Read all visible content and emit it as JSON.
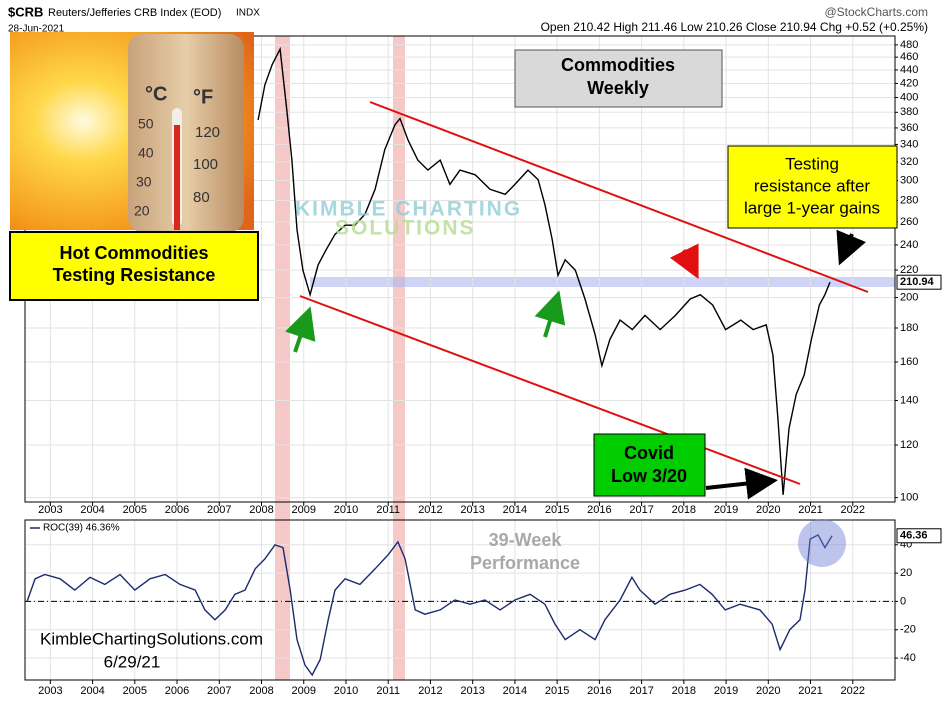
{
  "header": {
    "symbol": "$CRB",
    "name": "Reuters/Jefferies CRB Index (EOD)",
    "exchange": "INDX",
    "date": "28-Jun-2021",
    "source": "@StockCharts.com",
    "quote": "Open 210.42 High 211.46 Low 210.26 Close 210.94 Chg +0.52 (+0.25%)"
  },
  "image_labels": {
    "celsius": "°C",
    "fahrenheit": "°F",
    "c_ticks": [
      "50",
      "40",
      "30",
      "20"
    ],
    "f_ticks": [
      "120",
      "100",
      "80"
    ]
  },
  "annotations": {
    "title_box": [
      "Hot Commodities",
      "Testing Resistance"
    ],
    "period_box": [
      "Commodities",
      "Weekly"
    ],
    "resistance_box": [
      "Testing",
      "resistance after",
      "large 1-year gains"
    ],
    "covid_box": [
      "Covid",
      "Low 3/20"
    ],
    "watermark": [
      "KIMBLE CHARTING",
      "SOLUTIONS"
    ],
    "roc_note": [
      "39-Week",
      "Performance"
    ],
    "site": "KimbleChartingSolutions.com",
    "date": "6/29/21"
  },
  "chart_data": [
    {
      "type": "line",
      "log_scale": true,
      "grid": true,
      "color": "#000000",
      "x": [
        2007.92,
        2008.08,
        2008.25,
        2008.44,
        2008.6,
        2008.72,
        2008.84,
        2008.98,
        2009.15,
        2009.34,
        2009.53,
        2009.74,
        2009.98,
        2010.21,
        2010.45,
        2010.69,
        2010.92,
        2011.16,
        2011.28,
        2011.47,
        2011.7,
        2011.94,
        2012.23,
        2012.46,
        2012.7,
        2013.06,
        2013.41,
        2013.77,
        2014.0,
        2014.31,
        2014.55,
        2014.71,
        2014.88,
        2015.02,
        2015.19,
        2015.43,
        2015.66,
        2015.9,
        2016.06,
        2016.25,
        2016.49,
        2016.78,
        2017.08,
        2017.44,
        2017.8,
        2018.15,
        2018.39,
        2018.68,
        2018.99,
        2019.35,
        2019.64,
        2019.95,
        2020.11,
        2020.23,
        2020.35,
        2020.49,
        2020.66,
        2020.85,
        2021.02,
        2021.21,
        2021.34,
        2021.46
      ],
      "values": [
        370,
        418,
        448,
        473,
        383,
        322,
        253,
        220,
        202,
        224,
        236,
        249,
        257,
        257,
        267,
        291,
        334,
        364,
        372,
        345,
        322,
        311,
        322,
        296,
        311,
        306,
        291,
        286,
        296,
        311,
        301,
        276,
        245,
        216,
        228,
        220,
        199,
        176,
        158,
        173,
        185,
        179,
        188,
        179,
        188,
        199,
        202,
        195,
        179,
        185,
        179,
        182,
        164,
        131,
        101,
        127,
        143,
        153,
        173,
        195,
        202,
        210.94
      ],
      "last_value": 210.94,
      "xlim": [
        2002.4,
        2023.0
      ],
      "xticks": [
        2003,
        2004,
        2005,
        2006,
        2007,
        2008,
        2009,
        2010,
        2011,
        2012,
        2013,
        2014,
        2015,
        2016,
        2017,
        2018,
        2019,
        2020,
        2021,
        2022
      ],
      "ylim": [
        98.5,
        495
      ],
      "yticks": [
        100,
        120,
        140,
        160,
        180,
        200,
        220,
        240,
        260,
        280,
        300,
        320,
        340,
        360,
        380,
        400,
        420,
        440,
        460,
        480
      ]
    },
    {
      "type": "line",
      "grid": true,
      "reference_line": 0,
      "x": [
        2002.45,
        2002.64,
        2002.87,
        2003.23,
        2003.58,
        2003.94,
        2004.29,
        2004.65,
        2005.0,
        2005.36,
        2005.72,
        2006.07,
        2006.43,
        2006.66,
        2006.9,
        2007.14,
        2007.37,
        2007.61,
        2007.85,
        2008.08,
        2008.32,
        2008.51,
        2008.68,
        2008.84,
        2009.03,
        2009.2,
        2009.39,
        2009.58,
        2009.74,
        2009.98,
        2010.33,
        2010.69,
        2011.0,
        2011.23,
        2011.4,
        2011.64,
        2011.87,
        2012.23,
        2012.58,
        2012.94,
        2013.29,
        2013.65,
        2014.0,
        2014.36,
        2014.71,
        2014.95,
        2015.19,
        2015.54,
        2015.9,
        2016.13,
        2016.49,
        2016.77,
        2016.96,
        2017.32,
        2017.67,
        2018.03,
        2018.38,
        2018.67,
        2018.98,
        2019.33,
        2019.8,
        2020.09,
        2020.28,
        2020.51,
        2020.75,
        2020.87,
        2020.99,
        2021.18,
        2021.34,
        2021.51
      ],
      "series": [
        {
          "name": "ROC(39) 46.36%",
          "color": "#1c2b6e",
          "values": [
            0,
            16,
            19,
            16,
            8,
            17,
            12,
            19,
            8,
            16,
            19,
            12,
            8,
            -6,
            -13,
            -6,
            5,
            8,
            23,
            30,
            40,
            38,
            8,
            -27,
            -45,
            -52,
            -41,
            -13,
            8,
            16,
            12,
            23,
            33,
            42,
            30,
            -6,
            -9,
            -6,
            1,
            -2,
            1,
            -6,
            1,
            5,
            -2,
            -16,
            -27,
            -20,
            -27,
            -13,
            1,
            17,
            8,
            -2,
            5,
            8,
            12,
            5,
            -6,
            -2,
            -6,
            -16,
            -34,
            -20,
            -13,
            8,
            44,
            47,
            38,
            46.36
          ]
        }
      ],
      "last_value": 46.36,
      "xlim": [
        2002.4,
        2023.0
      ],
      "xticks": [
        2003,
        2004,
        2005,
        2006,
        2007,
        2008,
        2009,
        2010,
        2011,
        2012,
        2013,
        2014,
        2015,
        2016,
        2017,
        2018,
        2019,
        2020,
        2021,
        2022
      ],
      "ylim": [
        -55.5,
        57.5
      ],
      "yticks": [
        -40,
        -20,
        0,
        20,
        40
      ]
    }
  ]
}
